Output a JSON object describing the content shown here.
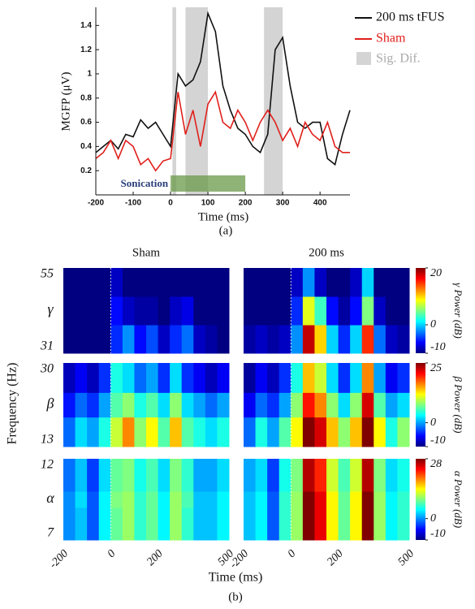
{
  "chart_data": [
    {
      "type": "line",
      "xlabel": "Time (ms)",
      "ylabel": "MGFP (μV)",
      "caption": "(a)",
      "x": [
        -200,
        -180,
        -160,
        -140,
        -120,
        -100,
        -80,
        -60,
        -40,
        -20,
        0,
        20,
        40,
        60,
        80,
        100,
        120,
        140,
        160,
        180,
        200,
        220,
        240,
        260,
        280,
        300,
        320,
        340,
        360,
        380,
        400,
        420,
        440,
        460,
        480
      ],
      "series": [
        {
          "name": "200 ms tFUS",
          "color": "#111111",
          "values": [
            0.35,
            0.4,
            0.45,
            0.38,
            0.5,
            0.48,
            0.62,
            0.55,
            0.6,
            0.5,
            0.4,
            1.0,
            0.9,
            0.95,
            1.1,
            1.5,
            1.35,
            0.9,
            0.7,
            0.55,
            0.5,
            0.4,
            0.35,
            0.5,
            1.2,
            1.3,
            0.9,
            0.6,
            0.55,
            0.6,
            0.6,
            0.3,
            0.25,
            0.5,
            0.7
          ]
        },
        {
          "name": "Sham",
          "color": "#e0201c",
          "values": [
            0.3,
            0.35,
            0.45,
            0.3,
            0.45,
            0.4,
            0.25,
            0.3,
            0.2,
            0.28,
            0.3,
            0.85,
            0.5,
            0.7,
            0.4,
            0.75,
            0.85,
            0.6,
            0.55,
            0.7,
            0.6,
            0.45,
            0.6,
            0.7,
            0.6,
            0.45,
            0.55,
            0.4,
            0.6,
            0.5,
            0.45,
            0.6,
            0.4,
            0.35,
            0.35
          ]
        }
      ],
      "sig_label": "Sig. Dif.",
      "sig_color": "#d4d4d4",
      "sig_regions": [
        [
          5,
          15
        ],
        [
          40,
          100
        ],
        [
          250,
          300
        ]
      ],
      "sonication": {
        "label": "Sonication",
        "range": [
          0,
          200
        ],
        "color": "#6a9a4a"
      },
      "xlim": [
        -200,
        480
      ],
      "xticks": [
        -200,
        -100,
        0,
        100,
        200,
        300,
        400
      ],
      "ylim": [
        0,
        1.55
      ],
      "yticks": [
        0.2,
        0.4,
        0.6,
        0.8,
        1,
        1.2,
        1.4
      ]
    },
    {
      "type": "heatmap",
      "columns": [
        "Sham",
        "200 ms"
      ],
      "xlabel": "Time (ms)",
      "ylabel": "Frequency (Hz)",
      "caption": "(b)",
      "xbins": [
        -200,
        -150,
        -100,
        -50,
        0,
        50,
        100,
        150,
        200,
        250,
        300,
        350,
        400,
        450,
        500
      ],
      "xlim": [
        -200,
        500
      ],
      "xticks": [
        -200,
        0,
        200,
        500
      ],
      "rows": [
        {
          "band": "γ",
          "ybins": [
            31,
            39,
            47,
            55
          ],
          "yticks": [
            31,
            55
          ],
          "clim": [
            -10,
            20
          ],
          "cticks": [
            -10,
            0,
            20
          ],
          "colorbar_label": "γ Power (dB)",
          "panels": [
            [
              [
                -10,
                -10,
                -10,
                -10,
                -5,
                -2,
                -6,
                -4,
                -8,
                -5,
                -3,
                -8,
                -9,
                -10
              ],
              [
                -10,
                -10,
                -10,
                -10,
                -6,
                -8,
                -9,
                -9,
                -10,
                -8,
                -7,
                -10,
                -10,
                -10
              ],
              [
                -10,
                -10,
                -10,
                -10,
                -8,
                -10,
                -10,
                -10,
                -10,
                -10,
                -10,
                -10,
                -10,
                -10
              ]
            ],
            [
              [
                -9,
                -8,
                -9,
                -8,
                -2,
                18,
                10,
                0,
                -5,
                0,
                15,
                -3,
                -8,
                -9
              ],
              [
                -10,
                -10,
                -10,
                -10,
                -5,
                8,
                3,
                -6,
                -9,
                -6,
                5,
                -8,
                -10,
                -10
              ],
              [
                -10,
                -10,
                -10,
                -10,
                -8,
                -2,
                -8,
                -10,
                -10,
                -8,
                0,
                -10,
                -10,
                -10
              ]
            ]
          ]
        },
        {
          "band": "β",
          "ybins": [
            13,
            19,
            24,
            30
          ],
          "yticks": [
            13,
            30
          ],
          "clim": [
            -10,
            25
          ],
          "cticks": [
            -10,
            0,
            25
          ],
          "colorbar_label": "β Power (dB)",
          "panels": [
            [
              [
                -2,
                2,
                0,
                4,
                10,
                16,
                8,
                12,
                6,
                14,
                6,
                4,
                2,
                4
              ],
              [
                -5,
                -2,
                -4,
                0,
                6,
                8,
                4,
                6,
                2,
                8,
                2,
                0,
                -2,
                0
              ],
              [
                -8,
                -6,
                -8,
                -4,
                4,
                2,
                -2,
                0,
                -4,
                2,
                -4,
                -6,
                -8,
                -6
              ]
            ],
            [
              [
                -2,
                4,
                0,
                6,
                12,
                25,
                22,
                14,
                8,
                14,
                25,
                12,
                4,
                8
              ],
              [
                -6,
                -2,
                -4,
                0,
                8,
                20,
                16,
                8,
                2,
                8,
                22,
                6,
                0,
                2
              ],
              [
                -9,
                -6,
                -8,
                -4,
                4,
                14,
                10,
                2,
                -4,
                2,
                16,
                0,
                -6,
                -4
              ]
            ]
          ]
        },
        {
          "band": "α",
          "ybins": [
            7,
            9,
            10,
            12
          ],
          "yticks": [
            7,
            12
          ],
          "clim": [
            -10,
            28
          ],
          "cticks": [
            -10,
            0,
            28
          ],
          "colorbar_label": "α Power (dB)",
          "panels": [
            [
              [
                0,
                2,
                -2,
                4,
                8,
                10,
                6,
                8,
                4,
                10,
                6,
                2,
                2,
                4
              ],
              [
                0,
                3,
                -2,
                4,
                9,
                10,
                6,
                8,
                4,
                10,
                7,
                2,
                2,
                4
              ],
              [
                -1,
                2,
                -3,
                3,
                8,
                9,
                5,
                7,
                3,
                9,
                6,
                1,
                1,
                3
              ]
            ],
            [
              [
                2,
                4,
                -2,
                6,
                10,
                28,
                24,
                14,
                8,
                14,
                28,
                10,
                4,
                6
              ],
              [
                2,
                4,
                -2,
                6,
                10,
                28,
                24,
                14,
                8,
                14,
                28,
                10,
                4,
                6
              ],
              [
                1,
                3,
                -3,
                5,
                9,
                26,
                22,
                12,
                7,
                12,
                26,
                9,
                3,
                5
              ]
            ]
          ]
        }
      ]
    }
  ]
}
